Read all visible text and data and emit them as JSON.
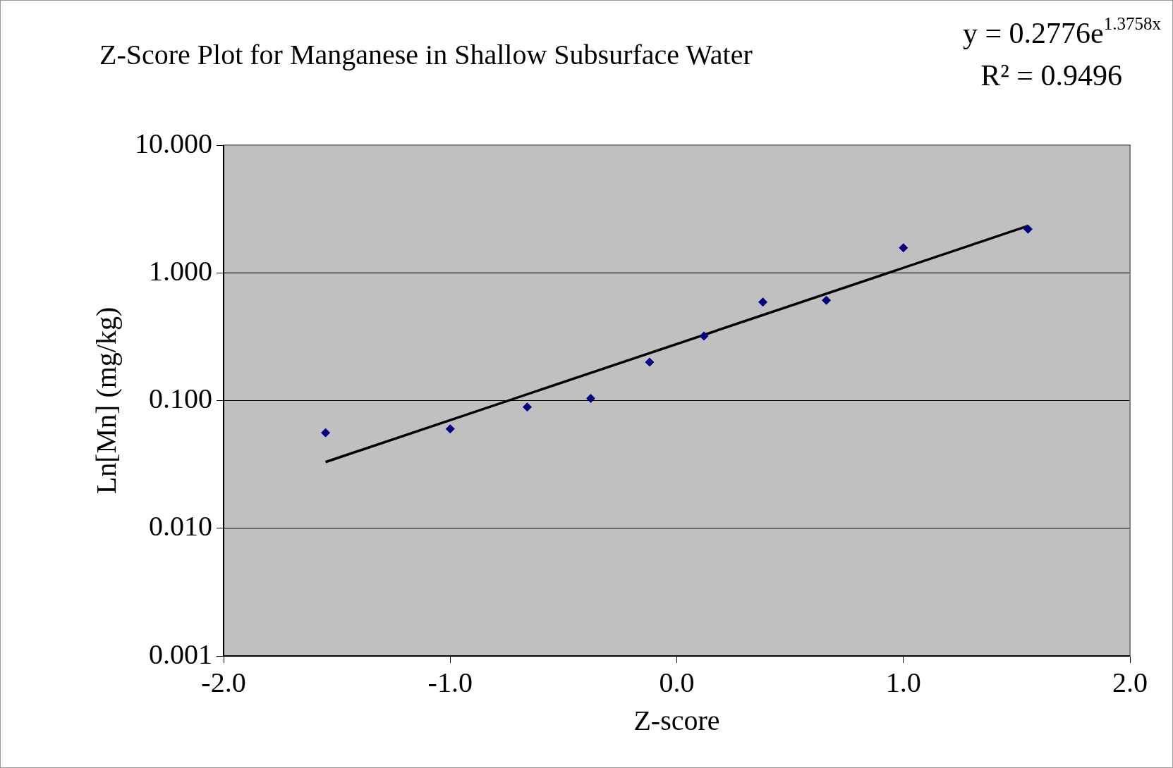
{
  "chart_data": {
    "type": "scatter",
    "title": "Z-Score Plot for Manganese in Shallow Subsurface Water",
    "xlabel": "Z-score",
    "ylabel": "Ln[Mn] (mg/kg)",
    "annotations": [
      "y = 0.2776e$^{1.3758x}$",
      "R² = 0.9496"
    ],
    "series": [
      {
        "color": "#000080",
        "marker": "diamond",
        "x": [
          -1.55,
          -1.0,
          -0.66,
          -0.38,
          -0.12,
          0.12,
          0.38,
          0.66,
          1.0,
          1.55
        ],
        "values": [
          0.056,
          0.06,
          0.089,
          0.104,
          0.2,
          0.32,
          0.59,
          0.61,
          1.57,
          2.2
        ]
      },
      {
        "type": "line",
        "color": "#000000",
        "marker": "none",
        "line_style": "solid",
        "x": [
          -1.55,
          1.55
        ],
        "values": [
          0.033,
          2.33
        ]
      }
    ],
    "xlim": [
      -2,
      2
    ],
    "xticks": [
      {
        "value": -2,
        "label": "-2.0"
      },
      {
        "value": -1,
        "label": "-1.0"
      },
      {
        "value": 0,
        "label": "0.0"
      },
      {
        "value": 1,
        "label": "1.0"
      },
      {
        "value": 2,
        "label": "2.0"
      }
    ],
    "ylim": [
      0.001,
      10
    ],
    "yticks": [
      {
        "value": 0.001,
        "label": "0.001"
      },
      {
        "value": 0.01,
        "label": "0.010"
      },
      {
        "value": 0.1,
        "label": "0.100"
      },
      {
        "value": 1,
        "label": "1.000"
      },
      {
        "value": 10,
        "label": "10.000"
      }
    ],
    "log": "y",
    "grid": "y",
    "legend": false
  }
}
